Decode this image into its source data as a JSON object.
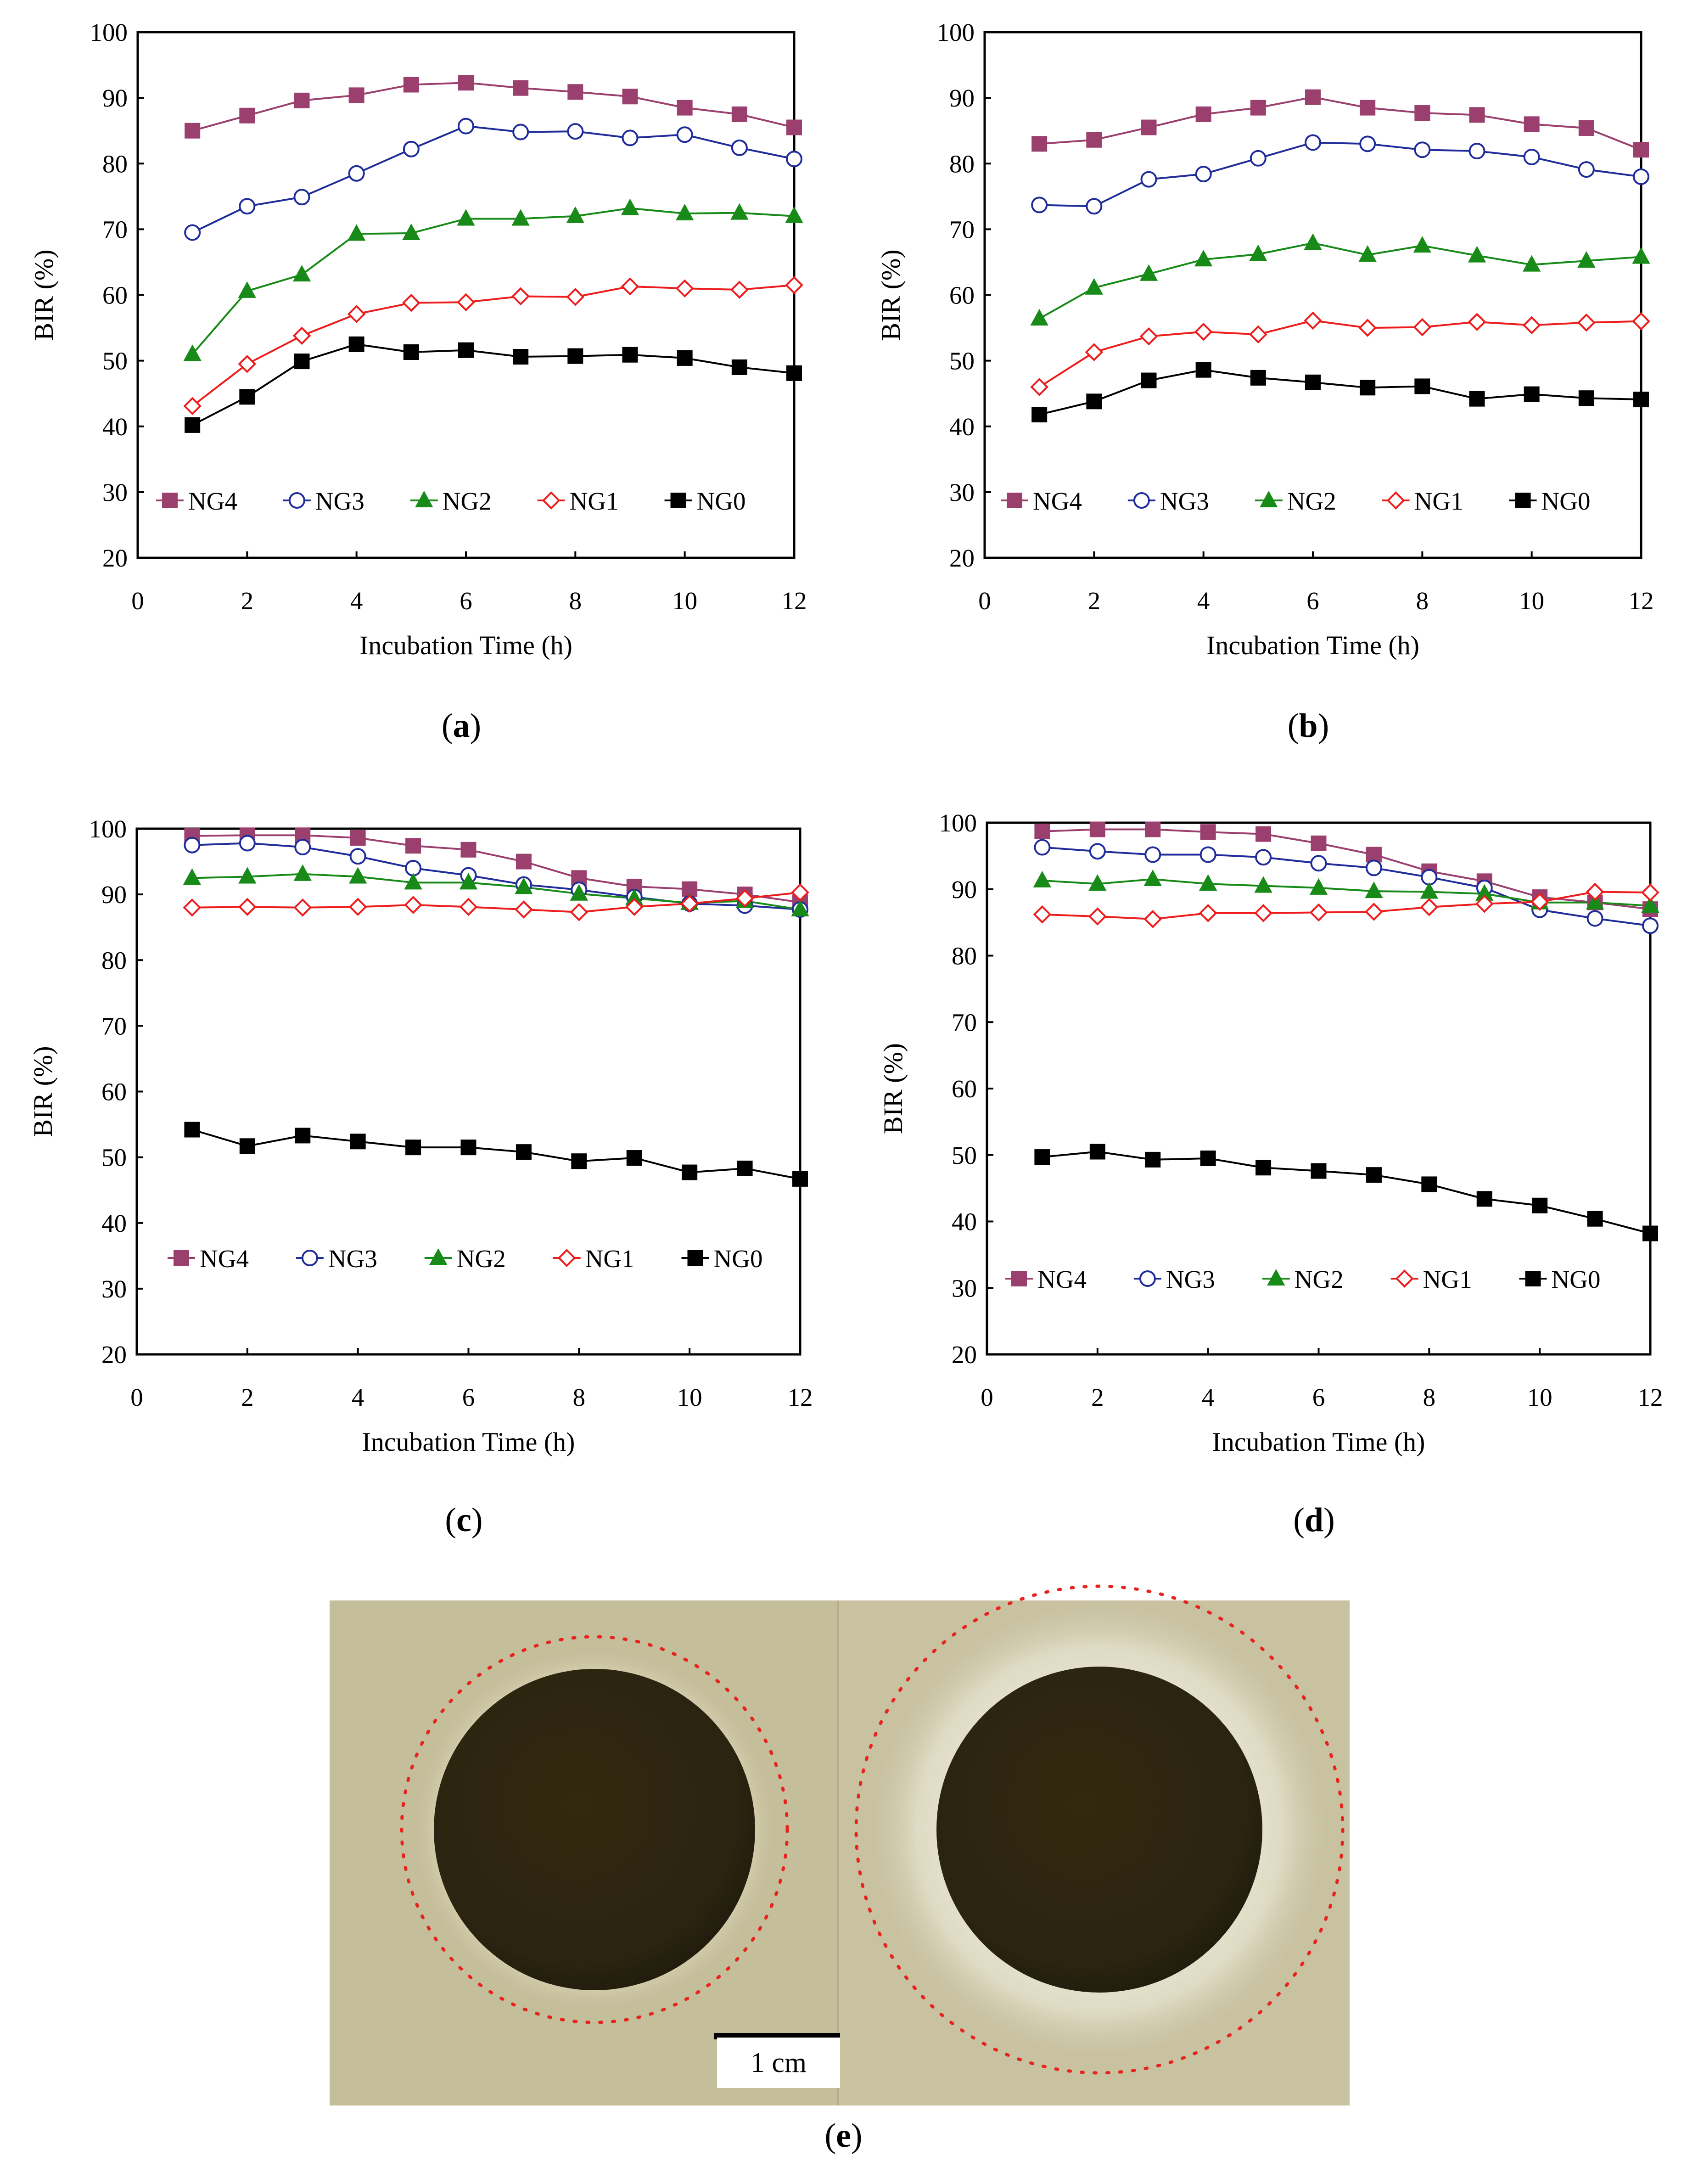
{
  "colors": {
    "NG4": "#9b3f6e",
    "NG3": "#1f2c99",
    "NG2": "#178a17",
    "NG1": "#ee1c1c",
    "NG0": "#000000",
    "plate_background": "#c3bd9a",
    "disc": "#2b2411",
    "halo_ring": "#e8231d"
  },
  "legend": {
    "entries": [
      "NG4",
      "NG3",
      "NG2",
      "NG1",
      "NG0"
    ],
    "markers": [
      "filled-square",
      "open-circle",
      "filled-triangle",
      "open-diamond",
      "filled-square"
    ]
  },
  "chart_data": [
    {
      "panel": "a",
      "type": "line",
      "caption_letter": "a",
      "xlabel": "Incubation Time (h)",
      "ylabel": "BIR (%)",
      "xlim": [
        0,
        12
      ],
      "ylim": [
        20,
        100
      ],
      "xticks": [
        0,
        2,
        4,
        6,
        8,
        10,
        12
      ],
      "yticks": [
        20,
        30,
        40,
        50,
        60,
        70,
        80,
        90,
        100
      ],
      "x": [
        1,
        2,
        3,
        4,
        5,
        6,
        7,
        8,
        9,
        10,
        11,
        12
      ],
      "legend_position": "lower-middle",
      "series": [
        {
          "name": "NG4",
          "values": [
            85,
            87.3,
            89.6,
            90.4,
            92,
            92.3,
            91.5,
            90.9,
            90.2,
            88.5,
            87.5,
            85.5
          ]
        },
        {
          "name": "NG3",
          "values": [
            69.5,
            73.5,
            74.9,
            78.5,
            82.2,
            85.7,
            84.8,
            84.9,
            83.9,
            84.4,
            82.4,
            80.7
          ]
        },
        {
          "name": "NG2",
          "values": [
            51,
            60.6,
            63.1,
            69.3,
            69.4,
            71.6,
            71.6,
            72,
            73.2,
            72.4,
            72.5,
            72
          ]
        },
        {
          "name": "NG1",
          "values": [
            43.1,
            49.5,
            53.8,
            57.1,
            58.8,
            58.9,
            59.8,
            59.7,
            61.3,
            61,
            60.8,
            61.5
          ]
        },
        {
          "name": "NG0",
          "values": [
            40.2,
            44.5,
            49.9,
            52.5,
            51.3,
            51.6,
            50.6,
            50.7,
            50.9,
            50.4,
            49,
            48.1
          ]
        }
      ]
    },
    {
      "panel": "b",
      "type": "line",
      "caption_letter": "b",
      "xlabel": "Incubation Time (h)",
      "ylabel": "BIR (%)",
      "xlim": [
        0,
        12
      ],
      "ylim": [
        20,
        100
      ],
      "xticks": [
        0,
        2,
        4,
        6,
        8,
        10,
        12
      ],
      "yticks": [
        20,
        30,
        40,
        50,
        60,
        70,
        80,
        90,
        100
      ],
      "x": [
        1,
        2,
        3,
        4,
        5,
        6,
        7,
        8,
        9,
        10,
        11,
        12
      ],
      "legend_position": "lower-middle",
      "series": [
        {
          "name": "NG4",
          "values": [
            83,
            83.6,
            85.5,
            87.5,
            88.5,
            90.1,
            88.5,
            87.7,
            87.4,
            86,
            85.4,
            82.1
          ]
        },
        {
          "name": "NG3",
          "values": [
            73.7,
            73.5,
            77.6,
            78.4,
            80.8,
            83.2,
            83,
            82.1,
            81.9,
            81,
            79.1,
            78
          ]
        },
        {
          "name": "NG2",
          "values": [
            56.4,
            61.1,
            63.2,
            65.4,
            66.2,
            67.9,
            66.1,
            67.5,
            66,
            64.6,
            65.2,
            65.8
          ]
        },
        {
          "name": "NG1",
          "values": [
            46,
            51.3,
            53.7,
            54.4,
            54,
            56.1,
            55,
            55.1,
            55.9,
            55.4,
            55.8,
            56
          ]
        },
        {
          "name": "NG0",
          "values": [
            41.8,
            43.8,
            47,
            48.6,
            47.4,
            46.7,
            45.9,
            46.1,
            44.2,
            44.9,
            44.3,
            44.1
          ]
        }
      ]
    },
    {
      "panel": "c",
      "type": "line",
      "caption_letter": "c",
      "xlabel": "Incubation Time (h)",
      "ylabel": "BIR (%)",
      "xlim": [
        0,
        12
      ],
      "ylim": [
        20,
        100
      ],
      "xticks": [
        0,
        2,
        4,
        6,
        8,
        10,
        12
      ],
      "yticks": [
        20,
        30,
        40,
        50,
        60,
        70,
        80,
        90,
        100
      ],
      "x": [
        1,
        2,
        3,
        4,
        5,
        6,
        7,
        8,
        9,
        10,
        11,
        12
      ],
      "legend_position": "lower-middle",
      "series": [
        {
          "name": "NG4",
          "values": [
            98.9,
            99,
            99,
            98.6,
            97.4,
            96.8,
            95,
            92.5,
            91.2,
            90.8,
            90,
            88.8
          ]
        },
        {
          "name": "NG3",
          "values": [
            97.5,
            97.8,
            97.2,
            95.8,
            94,
            92.9,
            91.5,
            90.7,
            89.6,
            88.6,
            88.3,
            87.7
          ]
        },
        {
          "name": "NG2",
          "values": [
            92.5,
            92.7,
            93.1,
            92.7,
            91.8,
            91.8,
            91.1,
            90.1,
            89.4,
            88.7,
            89,
            87.7
          ]
        },
        {
          "name": "NG1",
          "values": [
            88,
            88.1,
            88,
            88.1,
            88.4,
            88.1,
            87.7,
            87.3,
            88.1,
            88.6,
            89.4,
            90.3
          ]
        },
        {
          "name": "NG0",
          "values": [
            54.2,
            51.7,
            53.3,
            52.4,
            51.5,
            51.5,
            50.8,
            49.4,
            49.9,
            47.7,
            48.3,
            46.7
          ]
        }
      ]
    },
    {
      "panel": "d",
      "type": "line",
      "caption_letter": "d",
      "xlabel": "Incubation Time (h)",
      "ylabel": "BIR (%)",
      "xlim": [
        0,
        12
      ],
      "ylim": [
        20,
        100
      ],
      "xticks": [
        0,
        2,
        4,
        6,
        8,
        10,
        12
      ],
      "yticks": [
        20,
        30,
        40,
        50,
        60,
        70,
        80,
        90,
        100
      ],
      "x": [
        1,
        2,
        3,
        4,
        5,
        6,
        7,
        8,
        9,
        10,
        11,
        12
      ],
      "legend_position": "lower-middle",
      "series": [
        {
          "name": "NG4",
          "values": [
            98.7,
            99,
            99,
            98.6,
            98.3,
            96.9,
            95.2,
            92.7,
            91.2,
            88.8,
            88,
            87
          ]
        },
        {
          "name": "NG3",
          "values": [
            96.3,
            95.7,
            95.2,
            95.2,
            94.8,
            93.9,
            93.2,
            91.8,
            90.2,
            86.9,
            85.6,
            84.5
          ]
        },
        {
          "name": "NG2",
          "values": [
            91.3,
            90.8,
            91.5,
            90.8,
            90.5,
            90.2,
            89.7,
            89.6,
            89.3,
            88,
            88,
            87.5
          ]
        },
        {
          "name": "NG1",
          "values": [
            86.2,
            85.9,
            85.5,
            86.4,
            86.4,
            86.5,
            86.6,
            87.3,
            87.8,
            88.1,
            89.6,
            89.5
          ]
        },
        {
          "name": "NG0",
          "values": [
            49.7,
            50.5,
            49.3,
            49.5,
            48.1,
            47.6,
            47,
            45.6,
            43.4,
            42.4,
            40.4,
            38.2
          ]
        }
      ]
    }
  ],
  "photo_e": {
    "caption_letter": "e",
    "scale_bar_label": "1 cm"
  }
}
